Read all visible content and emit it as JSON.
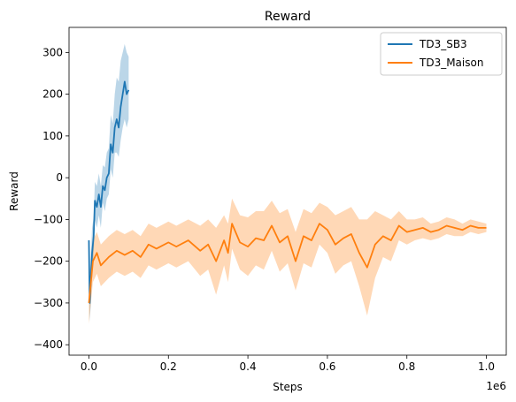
{
  "chart_data": {
    "type": "line",
    "title": "Reward",
    "xlabel": "Steps",
    "ylabel": "Reward",
    "x_offset_text": "1e6",
    "xlim": [
      -0.05,
      1.05
    ],
    "ylim": [
      -425,
      360
    ],
    "x_ticks": [
      0.0,
      0.2,
      0.4,
      0.6,
      0.8,
      1.0
    ],
    "x_tick_labels": [
      "0.0",
      "0.2",
      "0.4",
      "0.6",
      "0.8",
      "1.0"
    ],
    "y_ticks": [
      -400,
      -300,
      -200,
      -100,
      0,
      100,
      200,
      300
    ],
    "y_tick_labels": [
      "−400",
      "−300",
      "−200",
      "−100",
      "0",
      "100",
      "200",
      "300"
    ],
    "grid": false,
    "legend_position": "top-right",
    "series": [
      {
        "name": "TD3_SB3",
        "color": "#1f77b4",
        "band_color": "#1f77b4",
        "x": [
          0.0,
          0.002,
          0.005,
          0.008,
          0.012,
          0.015,
          0.02,
          0.025,
          0.03,
          0.035,
          0.04,
          0.045,
          0.05,
          0.055,
          0.06,
          0.065,
          0.07,
          0.075,
          0.08,
          0.085,
          0.09,
          0.095,
          0.1
        ],
        "mean": [
          -150,
          -300,
          -240,
          -180,
          -140,
          -55,
          -70,
          -40,
          -70,
          -20,
          -30,
          0,
          10,
          80,
          60,
          120,
          140,
          120,
          170,
          200,
          230,
          200,
          210
        ],
        "lower": [
          -150,
          -345,
          -300,
          -240,
          -180,
          -100,
          -120,
          -90,
          -120,
          -60,
          -80,
          -50,
          -40,
          20,
          0,
          60,
          60,
          50,
          90,
          120,
          140,
          120,
          140
        ],
        "upper": [
          -150,
          -255,
          -180,
          -120,
          -95,
          -10,
          -20,
          10,
          -20,
          30,
          25,
          60,
          70,
          150,
          130,
          200,
          240,
          230,
          280,
          300,
          320,
          300,
          290
        ]
      },
      {
        "name": "TD3_Maison",
        "color": "#ff7f0e",
        "band_color": "#ff7f0e",
        "x": [
          0.0,
          0.01,
          0.02,
          0.03,
          0.05,
          0.07,
          0.09,
          0.11,
          0.13,
          0.15,
          0.17,
          0.2,
          0.22,
          0.25,
          0.28,
          0.3,
          0.32,
          0.34,
          0.35,
          0.36,
          0.38,
          0.4,
          0.42,
          0.44,
          0.46,
          0.48,
          0.5,
          0.52,
          0.54,
          0.56,
          0.58,
          0.6,
          0.62,
          0.64,
          0.66,
          0.68,
          0.7,
          0.72,
          0.74,
          0.76,
          0.78,
          0.8,
          0.82,
          0.84,
          0.86,
          0.88,
          0.9,
          0.92,
          0.94,
          0.96,
          0.98,
          1.0
        ],
        "mean": [
          -300,
          -200,
          -180,
          -210,
          -190,
          -175,
          -185,
          -175,
          -190,
          -160,
          -170,
          -155,
          -165,
          -150,
          -175,
          -160,
          -200,
          -150,
          -180,
          -110,
          -155,
          -165,
          -145,
          -150,
          -115,
          -155,
          -140,
          -200,
          -140,
          -150,
          -110,
          -125,
          -160,
          -145,
          -135,
          -180,
          -215,
          -160,
          -140,
          -150,
          -115,
          -130,
          -125,
          -120,
          -130,
          -125,
          -115,
          -120,
          -125,
          -115,
          -120,
          -120
        ],
        "lower": [
          -350,
          -250,
          -230,
          -260,
          -240,
          -225,
          -235,
          -225,
          -240,
          -210,
          -220,
          -205,
          -215,
          -200,
          -235,
          -220,
          -280,
          -210,
          -250,
          -170,
          -220,
          -235,
          -210,
          -220,
          -175,
          -225,
          -205,
          -270,
          -205,
          -215,
          -160,
          -180,
          -230,
          -210,
          -200,
          -260,
          -330,
          -240,
          -190,
          -200,
          -150,
          -160,
          -150,
          -145,
          -150,
          -145,
          -135,
          -140,
          -140,
          -130,
          -135,
          -130
        ],
        "upper": [
          -250,
          -150,
          -130,
          -160,
          -140,
          -125,
          -135,
          -125,
          -140,
          -110,
          -120,
          -105,
          -115,
          -100,
          -115,
          -100,
          -120,
          -90,
          -110,
          -50,
          -90,
          -95,
          -80,
          -80,
          -55,
          -85,
          -75,
          -130,
          -75,
          -85,
          -60,
          -70,
          -90,
          -80,
          -70,
          -100,
          -100,
          -80,
          -90,
          -100,
          -80,
          -100,
          -100,
          -95,
          -110,
          -105,
          -95,
          -100,
          -110,
          -100,
          -105,
          -110
        ]
      }
    ]
  }
}
